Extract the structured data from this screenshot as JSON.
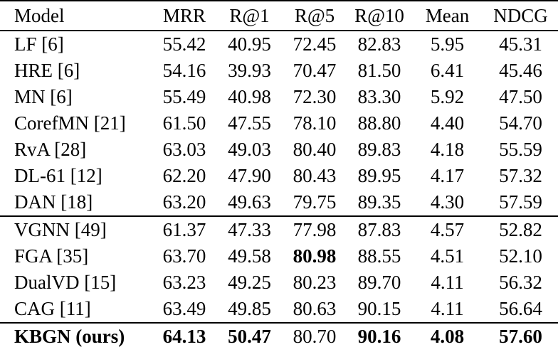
{
  "table": {
    "columns": [
      "Model",
      "MRR",
      "R@1",
      "R@5",
      "R@10",
      "Mean",
      "NDCG"
    ],
    "rows": [
      {
        "model": "LF [6]",
        "values": [
          "55.42",
          "40.95",
          "72.45",
          "82.83",
          "5.95",
          "45.31"
        ],
        "bold_model": false,
        "bold_values": [],
        "rule_after": false
      },
      {
        "model": "HRE [6]",
        "values": [
          "54.16",
          "39.93",
          "70.47",
          "81.50",
          "6.41",
          "45.46"
        ],
        "bold_model": false,
        "bold_values": [],
        "rule_after": false
      },
      {
        "model": "MN [6]",
        "values": [
          "55.49",
          "40.98",
          "72.30",
          "83.30",
          "5.92",
          "47.50"
        ],
        "bold_model": false,
        "bold_values": [],
        "rule_after": false
      },
      {
        "model": "CorefMN [21]",
        "values": [
          "61.50",
          "47.55",
          "78.10",
          "88.80",
          "4.40",
          "54.70"
        ],
        "bold_model": false,
        "bold_values": [],
        "rule_after": false
      },
      {
        "model": "RvA [28]",
        "values": [
          "63.03",
          "49.03",
          "80.40",
          "89.83",
          "4.18",
          "55.59"
        ],
        "bold_model": false,
        "bold_values": [],
        "rule_after": false
      },
      {
        "model": "DL-61 [12]",
        "values": [
          "62.20",
          "47.90",
          "80.43",
          "89.95",
          "4.17",
          "57.32"
        ],
        "bold_model": false,
        "bold_values": [],
        "rule_after": false
      },
      {
        "model": "DAN [18]",
        "values": [
          "63.20",
          "49.63",
          "79.75",
          "89.35",
          "4.30",
          "57.59"
        ],
        "bold_model": false,
        "bold_values": [],
        "rule_after": true
      },
      {
        "model": "VGNN [49]",
        "values": [
          "61.37",
          "47.33",
          "77.98",
          "87.83",
          "4.57",
          "52.82"
        ],
        "bold_model": false,
        "bold_values": [],
        "rule_after": false
      },
      {
        "model": "FGA [35]",
        "values": [
          "63.70",
          "49.58",
          "80.98",
          "88.55",
          "4.51",
          "52.10"
        ],
        "bold_model": false,
        "bold_values": [
          2
        ],
        "rule_after": false
      },
      {
        "model": "DualVD [15]",
        "values": [
          "63.23",
          "49.25",
          "80.23",
          "89.70",
          "4.11",
          "56.32"
        ],
        "bold_model": false,
        "bold_values": [],
        "rule_after": false
      },
      {
        "model": "CAG [11]",
        "values": [
          "63.49",
          "49.85",
          "80.63",
          "90.15",
          "4.11",
          "56.64"
        ],
        "bold_model": false,
        "bold_values": [],
        "rule_after": true
      },
      {
        "model": "KBGN (ours)",
        "values": [
          "64.13",
          "50.47",
          "80.70",
          "90.16",
          "4.08",
          "57.60"
        ],
        "bold_model": true,
        "bold_values": [
          0,
          1,
          3,
          4,
          5
        ],
        "rule_after": false
      }
    ],
    "colors": {
      "text": "#000000",
      "background": "#ffffff",
      "rule": "#000000"
    }
  }
}
